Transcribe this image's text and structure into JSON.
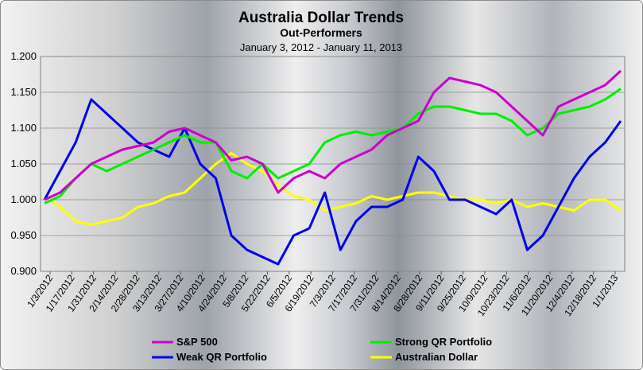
{
  "chart_data": {
    "type": "line",
    "title": "Australia Dollar Trends",
    "subtitle": "Out-Performers",
    "date_range": "January 3, 2012 - January 11, 2013",
    "xlabel": "",
    "ylabel": "",
    "ylim": [
      0.9,
      1.2
    ],
    "yticks": [
      "0.900",
      "0.950",
      "1.000",
      "1.050",
      "1.100",
      "1.150",
      "1.200"
    ],
    "x_tick_labels": [
      "1/3/2012",
      "1/17/2012",
      "1/31/2012",
      "2/14/2012",
      "2/28/2012",
      "3/13/2012",
      "3/27/2012",
      "4/10/2012",
      "4/24/2012",
      "5/8/2012",
      "5/22/2012",
      "6/5/2012",
      "6/19/2012",
      "7/3/2012",
      "7/17/2012",
      "7/31/2012",
      "8/14/2012",
      "8/28/2012",
      "9/11/2012",
      "9/25/2012",
      "10/9/2012",
      "10/23/2012",
      "11/6/2012",
      "11/20/2012",
      "12/4/2012",
      "12/18/2012",
      "1/1/2013"
    ],
    "grid": "horizontal",
    "legend_position": "bottom",
    "series": [
      {
        "name": "S&P 500",
        "color": "#cc00cc",
        "values": [
          1.0,
          1.01,
          1.03,
          1.05,
          1.06,
          1.07,
          1.075,
          1.08,
          1.095,
          1.1,
          1.09,
          1.08,
          1.055,
          1.06,
          1.05,
          1.01,
          1.03,
          1.04,
          1.03,
          1.05,
          1.06,
          1.07,
          1.09,
          1.1,
          1.11,
          1.15,
          1.17,
          1.165,
          1.16,
          1.15,
          1.13,
          1.11,
          1.09,
          1.13,
          1.14,
          1.15,
          1.16,
          1.18
        ]
      },
      {
        "name": "Strong QR Portfolio",
        "color": "#00ee00",
        "values": [
          0.995,
          1.005,
          1.03,
          1.05,
          1.04,
          1.05,
          1.06,
          1.07,
          1.08,
          1.09,
          1.08,
          1.08,
          1.04,
          1.03,
          1.05,
          1.03,
          1.04,
          1.05,
          1.08,
          1.09,
          1.095,
          1.09,
          1.095,
          1.1,
          1.12,
          1.13,
          1.13,
          1.125,
          1.12,
          1.12,
          1.11,
          1.09,
          1.1,
          1.12,
          1.125,
          1.13,
          1.14,
          1.155
        ]
      },
      {
        "name": "Weak QR Portfolio",
        "color": "#0000ee",
        "values": [
          1.0,
          1.04,
          1.08,
          1.14,
          1.12,
          1.1,
          1.08,
          1.07,
          1.06,
          1.1,
          1.05,
          1.03,
          0.95,
          0.93,
          0.92,
          0.91,
          0.95,
          0.96,
          1.01,
          0.93,
          0.97,
          0.99,
          0.99,
          1.0,
          1.06,
          1.04,
          1.0,
          1.0,
          0.99,
          0.98,
          1.0,
          0.93,
          0.95,
          0.99,
          1.03,
          1.06,
          1.08,
          1.11
        ]
      },
      {
        "name": "Australian Dollar",
        "color": "#ffff00",
        "values": [
          1.005,
          0.99,
          0.97,
          0.965,
          0.97,
          0.975,
          0.99,
          0.995,
          1.005,
          1.01,
          1.03,
          1.05,
          1.065,
          1.05,
          1.04,
          1.02,
          1.005,
          1.0,
          0.985,
          0.99,
          0.995,
          1.005,
          1.0,
          1.005,
          1.01,
          1.01,
          1.005,
          1.0,
          1.0,
          0.995,
          1.0,
          0.99,
          0.995,
          0.99,
          0.985,
          1.0,
          1.0,
          0.985
        ]
      }
    ]
  }
}
